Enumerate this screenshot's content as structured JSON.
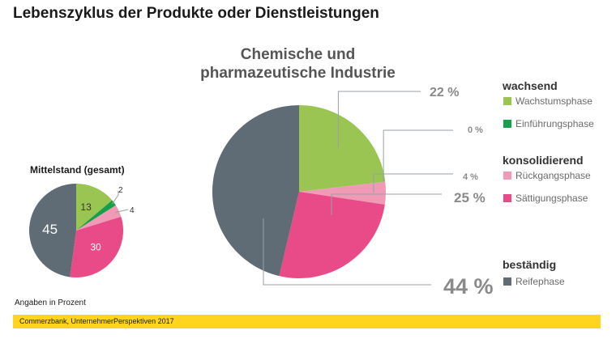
{
  "title": "Lebenszyklus der Produkte oder Dienstleistungen",
  "note": "Angaben in Prozent",
  "source": "Commerzbank, UnternehmerPerspektiven 2017",
  "colors": {
    "wachstum": "#9bc553",
    "einfuehrung": "#16a04a",
    "rueckgang": "#f09ab6",
    "saettigung": "#e84b87",
    "reife": "#5f6b75"
  },
  "chart_data": [
    {
      "type": "pie",
      "title": "Mittelstand (gesamt)",
      "categories": [
        "Wachstumsphase",
        "Einführungsphase",
        "Rückgangsphase",
        "Sättigungsphase",
        "Reifephase"
      ],
      "values": [
        13,
        2,
        4,
        30,
        45
      ],
      "labels": [
        "13",
        "2",
        "4",
        "30",
        "45"
      ]
    },
    {
      "type": "pie",
      "title": "Chemische und pharmazeutische Industrie",
      "title_lines": [
        "Chemische und",
        "pharmazeutische Industrie"
      ],
      "categories": [
        "Wachstumsphase",
        "Einführungsphase",
        "Rückgangsphase",
        "Sättigungsphase",
        "Reifephase"
      ],
      "values": [
        22,
        0,
        4,
        25,
        44
      ],
      "labels": [
        "22 %",
        "0 %",
        "4 %",
        "25 %",
        "44 %"
      ]
    }
  ],
  "legend": {
    "groups": [
      {
        "heading": "wachsend",
        "items": [
          {
            "label": "Wachstumsphase",
            "color_key": "wachstum"
          },
          {
            "label": "Einführungsphase",
            "color_key": "einfuehrung"
          }
        ]
      },
      {
        "heading": "konsolidierend",
        "items": [
          {
            "label": "Rückgangsphase",
            "color_key": "rueckgang"
          },
          {
            "label": "Sättigungsphase",
            "color_key": "saettigung"
          }
        ]
      },
      {
        "heading": "beständig",
        "items": [
          {
            "label": "Reifephase",
            "color_key": "reife"
          }
        ]
      }
    ]
  }
}
